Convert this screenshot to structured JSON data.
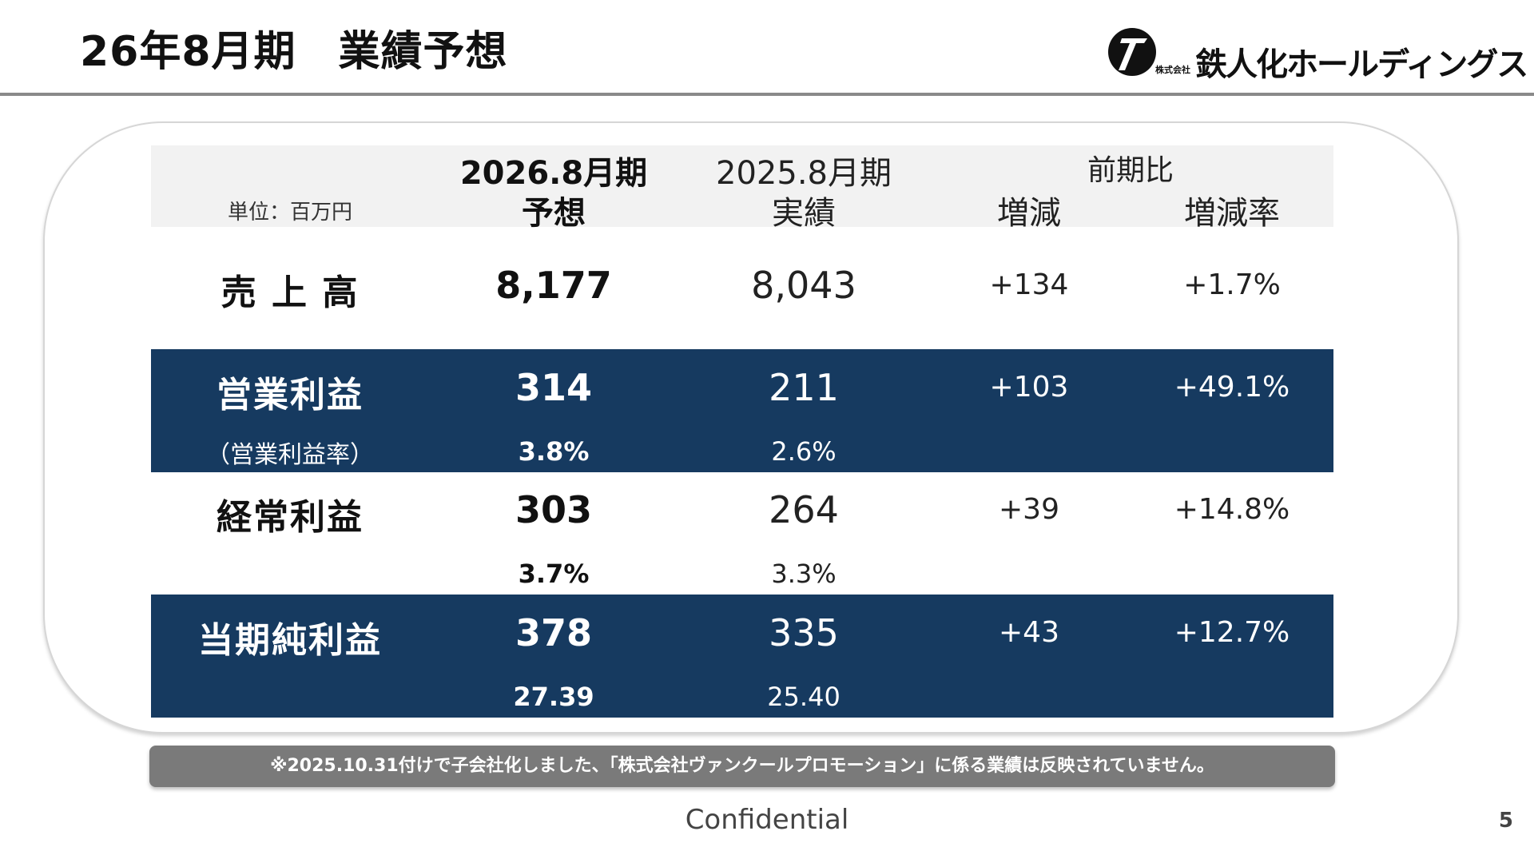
{
  "header": {
    "title": "26年8月期　業績予想",
    "logo_small": "株式会社",
    "logo_text": "鉄人化ホールディングス"
  },
  "table": {
    "unit": "単位：百万円",
    "col_forecast": [
      "2026.8月期",
      "予想"
    ],
    "col_actual": [
      "2025.8月期",
      "実績"
    ],
    "col_yoy": "前期比",
    "col_diff": "増減",
    "col_rate": "増減率",
    "rows": {
      "sales": {
        "label": "売 上 高",
        "forecast": "8,177",
        "actual": "8,043",
        "diff": "+134",
        "rate": "+1.7%"
      },
      "operating": {
        "label": "営業利益",
        "forecast": "314",
        "actual": "211",
        "diff": "+103",
        "rate": "+49.1%",
        "sub_label": "（営業利益率）",
        "sub_forecast": "3.8%",
        "sub_actual": "2.6%"
      },
      "ordinary": {
        "label": "経常利益",
        "forecast": "303",
        "actual": "264",
        "diff": "+39",
        "rate": "+14.8%",
        "sub_forecast": "3.7%",
        "sub_actual": "3.3%"
      },
      "net": {
        "label": "当期純利益",
        "forecast": "378",
        "actual": "335",
        "diff": "+43",
        "rate": "+12.7%",
        "sub_forecast": "27.39",
        "sub_actual": "25.40"
      }
    }
  },
  "note": "※2025.10.31付けで子会社化しました、「株式会社ヴァンクールプロモーション」に係る業績は反映されていません。",
  "footer": "Confidential",
  "page_number": "5",
  "colors": {
    "navy": "#163a60",
    "header_band": "#f2f2f2",
    "note_bg": "#7a7a7a",
    "rule": "#8a8a8a"
  }
}
